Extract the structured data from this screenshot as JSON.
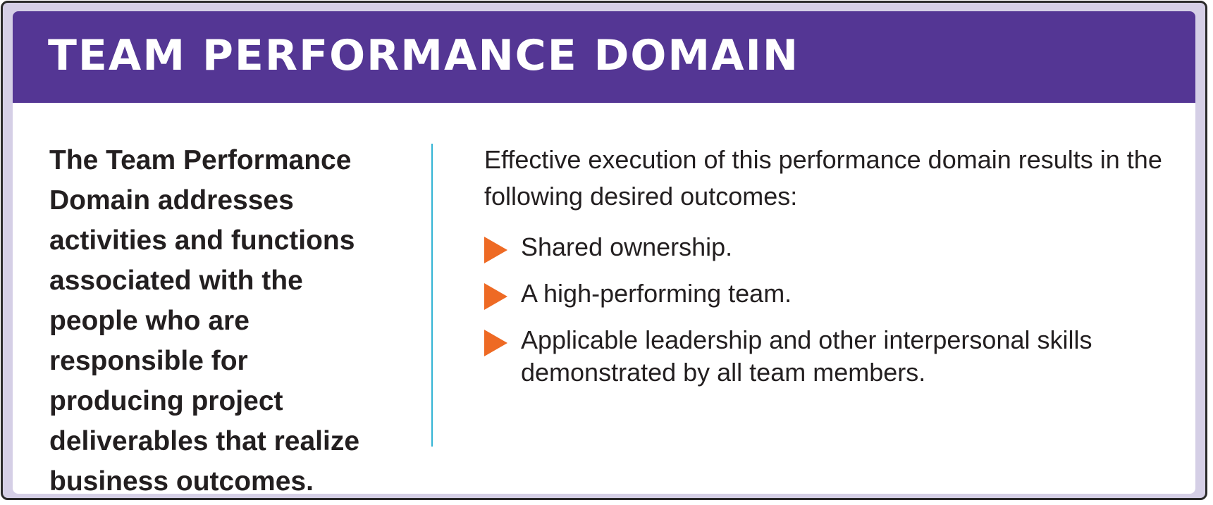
{
  "header": {
    "title": "TEAM PERFORMANCE DOMAIN",
    "background_color": "#543694"
  },
  "definition": {
    "text": "The Team Performance Domain addresses activities and functions associated with the people who are responsi­ble for producing project deliverables that realize business outcomes."
  },
  "outcomes": {
    "intro": "Effective execution of this performance domain results in the following desired outcomes:",
    "bullet_icon": "triangle-right-icon",
    "bullet_color": "#ee6a24",
    "items": [
      "Shared ownership.",
      "A high-performing team.",
      "Applicable leadership and other interpersonal skills demonstrated by all team members."
    ]
  },
  "divider_color": "#33b4d4"
}
